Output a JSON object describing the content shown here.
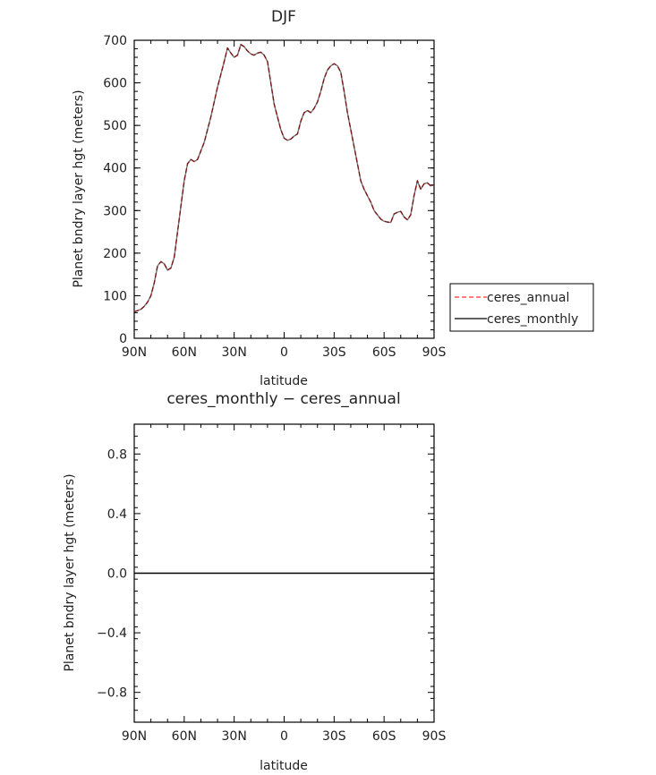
{
  "chart_data": [
    {
      "type": "line",
      "title": "DJF",
      "xlabel": "latitude",
      "ylabel": "Planet bndry layer hgt (meters)",
      "xlim": [
        90,
        -90
      ],
      "ylim": [
        0,
        700
      ],
      "xticks": [
        90,
        60,
        30,
        0,
        -30,
        -60,
        -90
      ],
      "xtick_labels": [
        "90N",
        "60N",
        "30N",
        "0",
        "30S",
        "60S",
        "90S"
      ],
      "yticks": [
        0,
        100,
        200,
        300,
        400,
        500,
        600,
        700
      ],
      "ytick_labels": [
        "0",
        "100",
        "200",
        "300",
        "400",
        "500",
        "600",
        "700"
      ],
      "legend": {
        "placement": "right",
        "entries": [
          "ceres_annual",
          "ceres_monthly"
        ]
      },
      "x": [
        90,
        88,
        86,
        84,
        82,
        80,
        78,
        76,
        74,
        72,
        70,
        68,
        66,
        64,
        62,
        60,
        58,
        56,
        54,
        52,
        50,
        48,
        46,
        44,
        42,
        40,
        38,
        36,
        34,
        32,
        30,
        28,
        26,
        24,
        22,
        20,
        18,
        16,
        14,
        12,
        10,
        8,
        6,
        4,
        2,
        0,
        -2,
        -4,
        -6,
        -8,
        -10,
        -12,
        -14,
        -16,
        -18,
        -20,
        -22,
        -24,
        -26,
        -28,
        -30,
        -32,
        -34,
        -36,
        -38,
        -40,
        -42,
        -44,
        -46,
        -48,
        -50,
        -52,
        -54,
        -56,
        -58,
        -60,
        -62,
        -64,
        -66,
        -68,
        -70,
        -72,
        -74,
        -76,
        -78,
        -80,
        -82,
        -84,
        -86,
        -88,
        -90
      ],
      "series": [
        {
          "name": "ceres_annual",
          "color": "#ff3030",
          "dash": "dashed",
          "values": [
            62,
            65,
            68,
            75,
            85,
            100,
            130,
            170,
            180,
            175,
            160,
            165,
            190,
            250,
            310,
            370,
            410,
            420,
            415,
            420,
            440,
            460,
            490,
            520,
            555,
            590,
            620,
            650,
            682,
            670,
            660,
            665,
            690,
            685,
            675,
            668,
            665,
            670,
            672,
            665,
            650,
            600,
            550,
            520,
            490,
            470,
            465,
            468,
            475,
            480,
            510,
            530,
            535,
            530,
            540,
            555,
            580,
            610,
            630,
            640,
            645,
            640,
            625,
            580,
            530,
            490,
            450,
            410,
            370,
            350,
            335,
            320,
            300,
            290,
            280,
            275,
            273,
            272,
            292,
            296,
            298,
            285,
            278,
            290,
            335,
            370,
            350,
            363,
            365,
            358,
            360
          ]
        },
        {
          "name": "ceres_monthly",
          "color": "#000000",
          "dash": "solid",
          "values": [
            62,
            65,
            68,
            75,
            85,
            100,
            130,
            170,
            180,
            175,
            160,
            165,
            190,
            250,
            310,
            370,
            410,
            420,
            415,
            420,
            440,
            460,
            490,
            520,
            555,
            590,
            620,
            650,
            682,
            670,
            660,
            665,
            690,
            685,
            675,
            668,
            665,
            670,
            672,
            665,
            650,
            600,
            550,
            520,
            490,
            470,
            465,
            468,
            475,
            480,
            510,
            530,
            535,
            530,
            540,
            555,
            580,
            610,
            630,
            640,
            645,
            640,
            625,
            580,
            530,
            490,
            450,
            410,
            370,
            350,
            335,
            320,
            300,
            290,
            280,
            275,
            273,
            272,
            292,
            296,
            298,
            285,
            278,
            290,
            335,
            370,
            350,
            363,
            365,
            358,
            360
          ]
        }
      ]
    },
    {
      "type": "line",
      "title": "ceres_monthly − ceres_annual",
      "xlabel": "latitude",
      "ylabel": "Planet bndry layer hgt (meters)",
      "xlim": [
        90,
        -90
      ],
      "ylim": [
        -1.0,
        1.0
      ],
      "xticks": [
        90,
        60,
        30,
        0,
        -30,
        -60,
        -90
      ],
      "xtick_labels": [
        "90N",
        "60N",
        "30N",
        "0",
        "30S",
        "60S",
        "90S"
      ],
      "yticks": [
        -0.8,
        -0.4,
        0.0,
        0.4,
        0.8
      ],
      "ytick_labels": [
        "−0.8",
        "−0.4",
        "0.0",
        "0.4",
        "0.8"
      ],
      "x": [
        90,
        -90
      ],
      "series": [
        {
          "color": "#000000",
          "dash": "solid",
          "values": [
            0,
            0
          ]
        }
      ]
    }
  ]
}
